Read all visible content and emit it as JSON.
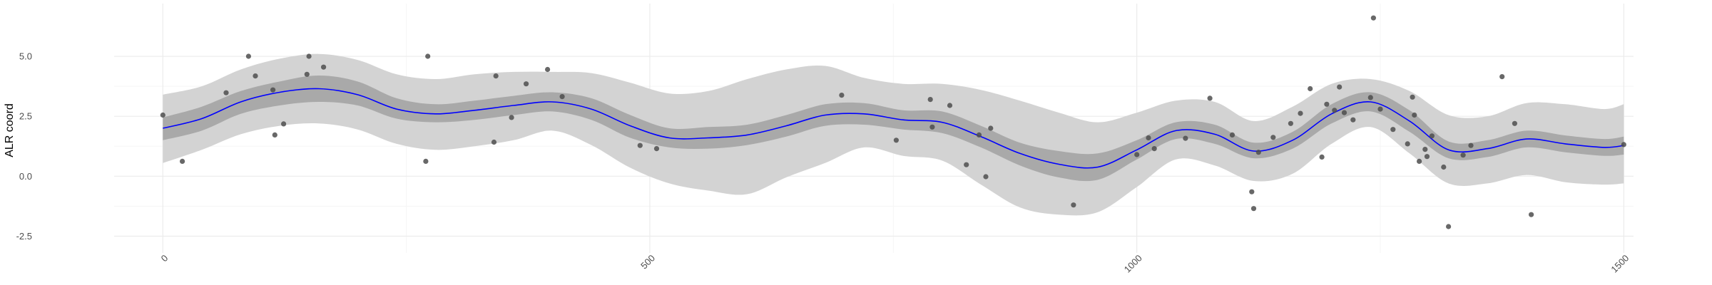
{
  "chart_data": {
    "type": "scatter",
    "title": "",
    "xlabel": "",
    "ylabel": "ALR coord",
    "xlim": [
      -50,
      1510
    ],
    "ylim": [
      -3.2,
      7.2
    ],
    "x_ticks": [
      0,
      500,
      1000,
      1500
    ],
    "x_tick_labels": [
      "0",
      "500",
      "1000",
      "1500"
    ],
    "y_ticks": [
      -2.5,
      0,
      2.5,
      5
    ],
    "y_tick_labels": [
      "-2.5",
      "0.0",
      "2.5",
      "5.0"
    ],
    "grid": true,
    "colors": {
      "points": "#4d4d4d",
      "smooth_line": "#0000ff",
      "inner_band": "#a9a9a9",
      "outer_band": "#d3d3d3",
      "grid_major": "#ebebeb",
      "grid_minor": "#f5f5f5"
    },
    "points": [
      {
        "x": 0,
        "y": 2.55
      },
      {
        "x": 20,
        "y": 0.62
      },
      {
        "x": 65,
        "y": 3.48
      },
      {
        "x": 88,
        "y": 5.0
      },
      {
        "x": 95,
        "y": 4.18
      },
      {
        "x": 113,
        "y": 3.6
      },
      {
        "x": 115,
        "y": 1.72
      },
      {
        "x": 124,
        "y": 2.18
      },
      {
        "x": 148,
        "y": 4.25
      },
      {
        "x": 150,
        "y": 5.0
      },
      {
        "x": 165,
        "y": 4.55
      },
      {
        "x": 270,
        "y": 0.62
      },
      {
        "x": 272,
        "y": 5.0
      },
      {
        "x": 340,
        "y": 1.42
      },
      {
        "x": 342,
        "y": 4.18
      },
      {
        "x": 358,
        "y": 2.45
      },
      {
        "x": 373,
        "y": 3.85
      },
      {
        "x": 395,
        "y": 4.45
      },
      {
        "x": 410,
        "y": 3.32
      },
      {
        "x": 490,
        "y": 1.28
      },
      {
        "x": 507,
        "y": 1.15
      },
      {
        "x": 697,
        "y": 3.38
      },
      {
        "x": 753,
        "y": 1.5
      },
      {
        "x": 788,
        "y": 3.2
      },
      {
        "x": 790,
        "y": 2.05
      },
      {
        "x": 808,
        "y": 2.95
      },
      {
        "x": 825,
        "y": 0.48
      },
      {
        "x": 838,
        "y": 1.72
      },
      {
        "x": 845,
        "y": -0.02
      },
      {
        "x": 850,
        "y": 2.0
      },
      {
        "x": 935,
        "y": -1.2
      },
      {
        "x": 1000,
        "y": 0.9
      },
      {
        "x": 1012,
        "y": 1.6
      },
      {
        "x": 1018,
        "y": 1.15
      },
      {
        "x": 1050,
        "y": 1.58
      },
      {
        "x": 1075,
        "y": 3.25
      },
      {
        "x": 1098,
        "y": 1.72
      },
      {
        "x": 1118,
        "y": -0.65
      },
      {
        "x": 1120,
        "y": -1.35
      },
      {
        "x": 1125,
        "y": 1.0
      },
      {
        "x": 1140,
        "y": 1.62
      },
      {
        "x": 1158,
        "y": 2.2
      },
      {
        "x": 1168,
        "y": 2.62
      },
      {
        "x": 1178,
        "y": 3.65
      },
      {
        "x": 1190,
        "y": 0.8
      },
      {
        "x": 1195,
        "y": 3.0
      },
      {
        "x": 1203,
        "y": 2.75
      },
      {
        "x": 1208,
        "y": 3.72
      },
      {
        "x": 1213,
        "y": 2.65
      },
      {
        "x": 1222,
        "y": 2.35
      },
      {
        "x": 1240,
        "y": 3.28
      },
      {
        "x": 1243,
        "y": 6.6
      },
      {
        "x": 1250,
        "y": 2.8
      },
      {
        "x": 1263,
        "y": 1.95
      },
      {
        "x": 1278,
        "y": 1.35
      },
      {
        "x": 1283,
        "y": 3.3
      },
      {
        "x": 1285,
        "y": 2.55
      },
      {
        "x": 1290,
        "y": 0.62
      },
      {
        "x": 1296,
        "y": 1.12
      },
      {
        "x": 1298,
        "y": 0.82
      },
      {
        "x": 1303,
        "y": 1.68
      },
      {
        "x": 1315,
        "y": 0.38
      },
      {
        "x": 1320,
        "y": -2.1
      },
      {
        "x": 1335,
        "y": 0.88
      },
      {
        "x": 1343,
        "y": 1.28
      },
      {
        "x": 1375,
        "y": 4.15
      },
      {
        "x": 1388,
        "y": 2.2
      },
      {
        "x": 1405,
        "y": -1.6
      },
      {
        "x": 1500,
        "y": 1.32
      }
    ],
    "smooth": {
      "x": [
        0,
        40,
        80,
        120,
        160,
        200,
        240,
        280,
        320,
        360,
        400,
        440,
        480,
        520,
        560,
        600,
        640,
        680,
        720,
        760,
        800,
        840,
        880,
        920,
        960,
        1000,
        1040,
        1080,
        1120,
        1160,
        1200,
        1240,
        1280,
        1320,
        1360,
        1400,
        1440,
        1480,
        1500
      ],
      "fit": [
        2.0,
        2.4,
        3.1,
        3.5,
        3.65,
        3.4,
        2.8,
        2.6,
        2.75,
        2.95,
        3.1,
        2.8,
        2.1,
        1.6,
        1.6,
        1.72,
        2.1,
        2.55,
        2.6,
        2.35,
        2.25,
        1.65,
        0.95,
        0.5,
        0.38,
        1.1,
        1.9,
        1.75,
        1.05,
        1.5,
        2.6,
        3.1,
        2.3,
        1.1,
        1.15,
        1.55,
        1.35,
        1.2,
        1.28
      ],
      "inner_lo": [
        1.5,
        1.9,
        2.6,
        2.95,
        3.1,
        2.95,
        2.4,
        2.25,
        2.35,
        2.55,
        2.7,
        2.35,
        1.6,
        1.2,
        1.15,
        1.3,
        1.65,
        2.1,
        2.15,
        1.95,
        1.8,
        1.2,
        0.45,
        -0.05,
        -0.15,
        0.7,
        1.55,
        1.35,
        0.75,
        1.15,
        2.2,
        2.7,
        1.85,
        0.75,
        0.8,
        1.2,
        1.0,
        0.85,
        0.9
      ],
      "inner_hi": [
        2.45,
        2.9,
        3.55,
        3.95,
        4.2,
        3.95,
        3.25,
        3.0,
        3.15,
        3.35,
        3.5,
        3.25,
        2.55,
        2.0,
        2.05,
        2.15,
        2.55,
        3.0,
        3.05,
        2.75,
        2.7,
        2.1,
        1.4,
        1.05,
        0.95,
        1.5,
        2.25,
        2.15,
        1.4,
        1.85,
        3.0,
        3.5,
        2.75,
        1.45,
        1.5,
        1.9,
        1.7,
        1.55,
        1.65
      ],
      "outer_lo": [
        0.55,
        1.1,
        1.75,
        2.1,
        2.2,
        1.95,
        1.35,
        1.1,
        1.25,
        1.5,
        1.9,
        1.3,
        0.35,
        -0.3,
        -0.6,
        -0.75,
        -0.05,
        0.55,
        1.2,
        0.85,
        0.65,
        -0.35,
        -1.3,
        -1.6,
        -1.5,
        -0.45,
        0.7,
        0.45,
        -0.2,
        0.1,
        1.35,
        2.05,
        0.95,
        -0.3,
        -0.3,
        0.05,
        -0.25,
        -0.35,
        -0.3
      ],
      "outer_hi": [
        3.4,
        3.75,
        4.45,
        4.9,
        5.1,
        4.85,
        4.25,
        4.05,
        4.25,
        4.35,
        4.35,
        4.3,
        3.9,
        3.45,
        3.55,
        4.05,
        4.45,
        4.6,
        4.1,
        3.85,
        3.85,
        3.6,
        3.15,
        2.65,
        2.25,
        2.65,
        3.15,
        3.1,
        2.3,
        2.9,
        3.85,
        4.05,
        3.55,
        2.55,
        2.5,
        3.05,
        3.0,
        2.8,
        3.0
      ]
    }
  }
}
